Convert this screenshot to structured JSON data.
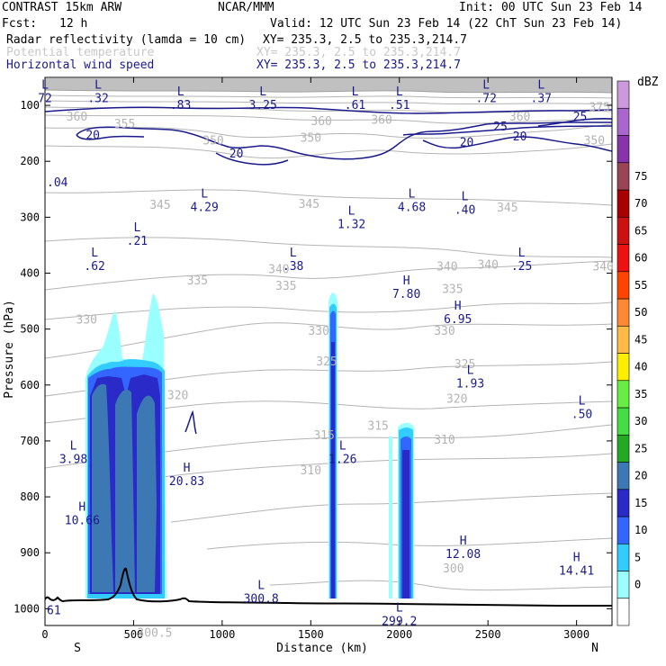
{
  "header": {
    "model": "CONTRAST 15km ARW",
    "center": "NCAR/MMM",
    "init": "Init: 00 UTC Sun 23 Feb 14",
    "fcst_label": "Fcst:",
    "fcst_value": "12 h",
    "valid": "Valid: 12 UTC Sun 23 Feb 14 (22 ChT Sun 23 Feb 14)",
    "fields": [
      {
        "name": "Radar reflectivity (lamda = 10 cm)",
        "xy": "XY= 235.3,  2.5 to 235.3,214.7",
        "color": "#000000"
      },
      {
        "name": "Potential temperature",
        "xy": "XY= 235.3,  2.5 to 235.3,214.7",
        "color": "#c8c8c8"
      },
      {
        "name": "Horizontal wind speed",
        "xy": "XY= 235.3,  2.5 to 235.3,214.7",
        "color": "#1a1a8c"
      }
    ]
  },
  "chart_data": {
    "type": "cross-section",
    "xlabel": "Distance (km)",
    "ylabel": "Pressure (hPa)",
    "xlim": [
      0,
      3200
    ],
    "ylim": [
      1030,
      50
    ],
    "x_ticks": [
      "0",
      "500",
      "1000",
      "1500",
      "2000",
      "2500",
      "3000"
    ],
    "y_ticks": [
      "100",
      "200",
      "300",
      "400",
      "500",
      "600",
      "700",
      "800",
      "900",
      "1000"
    ],
    "endpoints": {
      "left": "S",
      "right": "N"
    },
    "colorbar": {
      "title": "dBZ",
      "levels": [
        "0",
        "5",
        "10",
        "15",
        "20",
        "25",
        "30",
        "35",
        "40",
        "45",
        "50",
        "55",
        "60",
        "65",
        "70",
        "75"
      ],
      "colors": [
        "#ffffff",
        "#99ffff",
        "#33ccff",
        "#3366ff",
        "#2a2ac8",
        "#3c78b4",
        "#22aa22",
        "#44dd44",
        "#66ee44",
        "#ffee00",
        "#ffbb44",
        "#ff8833",
        "#ff4400",
        "#ee1111",
        "#cc1111",
        "#aa0000",
        "#9a4455",
        "#8833aa",
        "#aa66cc",
        "#cc99dd"
      ]
    },
    "reflectivity_cells": [
      {
        "x0": 260,
        "x1": 680,
        "top": 450,
        "core_top": 555,
        "peak": 25
      },
      {
        "x0": 1580,
        "x1": 1640,
        "top": 440,
        "core_top": 470,
        "peak": 20
      },
      {
        "x0": 1990,
        "x1": 2060,
        "top": 680,
        "core_top": 695,
        "peak": 20
      }
    ],
    "theta_contours": {
      "color": "#b4b4b4",
      "levels": [
        300,
        305,
        310,
        315,
        320,
        325,
        330,
        335,
        340,
        345,
        350,
        355,
        360,
        365,
        370,
        375
      ]
    },
    "theta_labels": [
      {
        "x": 1320,
        "p": 400,
        "t": "340"
      },
      {
        "x": 1360,
        "p": 430,
        "t": "335"
      },
      {
        "x": 1490,
        "p": 283,
        "t": "345"
      },
      {
        "x": 2270,
        "p": 395,
        "t": "340"
      },
      {
        "x": 2500,
        "p": 392,
        "t": "340"
      },
      {
        "x": 2610,
        "p": 290,
        "t": "345"
      },
      {
        "x": 3150,
        "p": 395,
        "t": "340"
      },
      {
        "x": 860,
        "p": 420,
        "t": "335"
      },
      {
        "x": 235,
        "p": 490,
        "t": "330"
      },
      {
        "x": 1545,
        "p": 510,
        "t": "330"
      },
      {
        "x": 2255,
        "p": 510,
        "t": "330"
      },
      {
        "x": 2300,
        "p": 435,
        "t": "335"
      },
      {
        "x": 1590,
        "p": 565,
        "t": "325"
      },
      {
        "x": 2370,
        "p": 570,
        "t": "325"
      },
      {
        "x": 750,
        "p": 625,
        "t": "320"
      },
      {
        "x": 2325,
        "p": 632,
        "t": "320"
      },
      {
        "x": 1575,
        "p": 697,
        "t": "315"
      },
      {
        "x": 1880,
        "p": 680,
        "t": "315"
      },
      {
        "x": 2255,
        "p": 705,
        "t": "310"
      },
      {
        "x": 1500,
        "p": 760,
        "t": "310"
      },
      {
        "x": 2305,
        "p": 935,
        "t": "300"
      },
      {
        "x": 650,
        "p": 285,
        "t": "345"
      },
      {
        "x": 450,
        "p": 140,
        "t": "355"
      },
      {
        "x": 1500,
        "p": 165,
        "t": "350"
      },
      {
        "x": 950,
        "p": 170,
        "t": "350"
      },
      {
        "x": 3100,
        "p": 170,
        "t": "350"
      },
      {
        "x": 3130,
        "p": 110,
        "t": "375"
      },
      {
        "x": 2680,
        "p": 127,
        "t": "360"
      },
      {
        "x": 1560,
        "p": 135,
        "t": "360"
      },
      {
        "x": 1900,
        "p": 133,
        "t": "360"
      },
      {
        "x": 180,
        "p": 127,
        "t": "360"
      }
    ],
    "wind_contours": {
      "color": "#1a1a8c",
      "levels": [
        20,
        25
      ]
    },
    "wind_labels": [
      {
        "x": 270,
        "p": 160,
        "t": "20"
      },
      {
        "x": 1080,
        "p": 193,
        "t": "20"
      },
      {
        "x": 2380,
        "p": 173,
        "t": "20"
      },
      {
        "x": 2680,
        "p": 163,
        "t": "20"
      },
      {
        "x": 2570,
        "p": 145,
        "t": "25"
      },
      {
        "x": 3020,
        "p": 127,
        "t": "25"
      }
    ],
    "extrema": [
      {
        "x": 300,
        "p": 70,
        "k": "L",
        "v": ".32"
      },
      {
        "x": 765,
        "p": 82,
        "k": "L",
        "v": ".83"
      },
      {
        "x": 1230,
        "p": 82,
        "k": "L",
        "v": "3.25"
      },
      {
        "x": 1750,
        "p": 82,
        "k": "L",
        "v": ".61"
      },
      {
        "x": 2000,
        "p": 82,
        "k": "L",
        "v": ".51"
      },
      {
        "x": 2490,
        "p": 70,
        "k": "L",
        "v": ".72"
      },
      {
        "x": 2800,
        "p": 70,
        "k": "L",
        "v": ".37"
      },
      {
        "x": 0,
        "p": 70,
        "k": "L",
        "v": "72"
      },
      {
        "x": 900,
        "p": 265,
        "k": "L",
        "v": "4.29"
      },
      {
        "x": 1730,
        "p": 295,
        "k": "L",
        "v": "1.32"
      },
      {
        "x": 2070,
        "p": 265,
        "k": "L",
        "v": "4.68"
      },
      {
        "x": 2370,
        "p": 270,
        "k": "L",
        "v": ".40"
      },
      {
        "x": 520,
        "p": 325,
        "k": "L",
        "v": ".21"
      },
      {
        "x": 280,
        "p": 370,
        "k": "L",
        "v": ".62"
      },
      {
        "x": 1400,
        "p": 370,
        "k": "L",
        "v": ".38"
      },
      {
        "x": 2690,
        "p": 370,
        "k": "L",
        "v": ".25"
      },
      {
        "x": 2040,
        "p": 420,
        "k": "H",
        "v": "7.80"
      },
      {
        "x": 2330,
        "p": 465,
        "k": "H",
        "v": "6.95"
      },
      {
        "x": 2400,
        "p": 580,
        "k": "L",
        "v": "1.93"
      },
      {
        "x": 3030,
        "p": 635,
        "k": "L",
        "v": ".50"
      },
      {
        "x": 1680,
        "p": 715,
        "k": "L",
        "v": "1.26"
      },
      {
        "x": 160,
        "p": 715,
        "k": "L",
        "v": "3.98"
      },
      {
        "x": 800,
        "p": 755,
        "k": "H",
        "v": "20.83"
      },
      {
        "x": 210,
        "p": 825,
        "k": "H",
        "v": "10.66"
      },
      {
        "x": 2360,
        "p": 885,
        "k": "H",
        "v": "12.08"
      },
      {
        "x": 3000,
        "p": 915,
        "k": "H",
        "v": "14.41"
      },
      {
        "x": 1220,
        "p": 965,
        "k": "L",
        "v": "300.8"
      },
      {
        "x": 2000,
        "p": 1005,
        "k": "L",
        "v": "299.2"
      }
    ],
    "misc_labels": [
      {
        "x": 0,
        "p": 245,
        "t": ".04",
        "color": "#1a1a8c"
      },
      {
        "x": 0,
        "p": 1010,
        "t": "61",
        "color": "#1a1a8c"
      },
      {
        "x": 520,
        "p": 1050,
        "t": "300.5",
        "color": "#b4b4b4"
      }
    ]
  }
}
